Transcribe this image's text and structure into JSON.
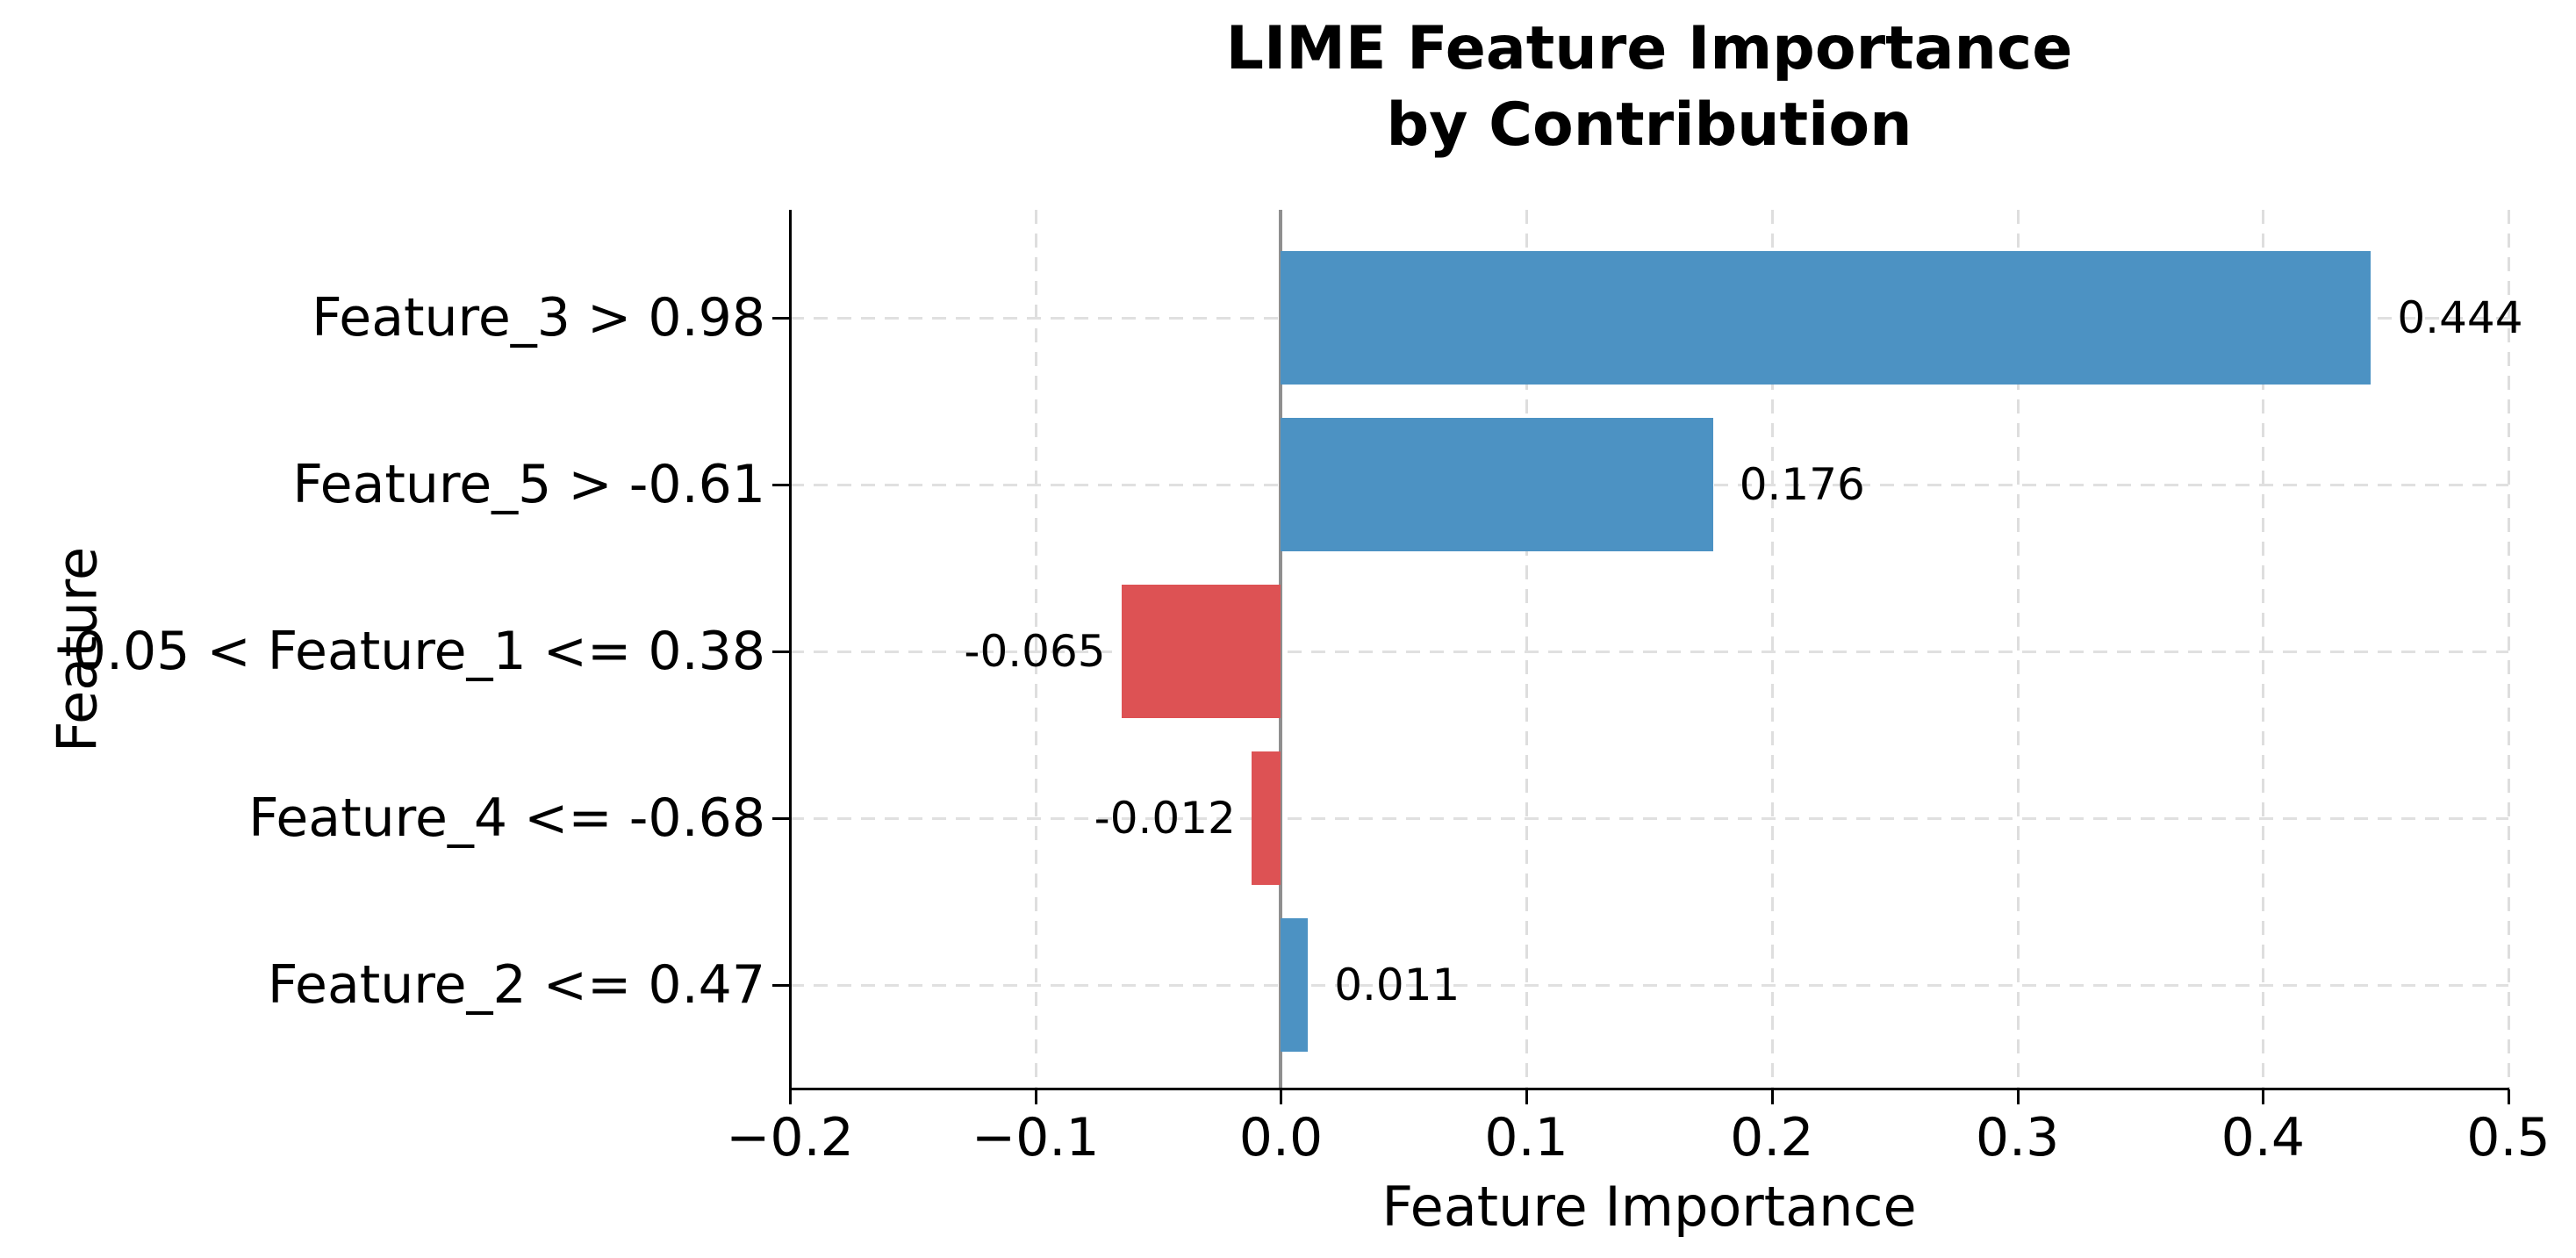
{
  "title": "LIME Feature Importance\nby Contribution",
  "chart_data": {
    "type": "bar",
    "orientation": "horizontal",
    "title": "LIME Feature Importance by Contribution",
    "categories": [
      "Feature_3 > 0.98",
      "Feature_5 > -0.61",
      "0.05 < Feature_1 <= 0.38",
      "Feature_4 <= -0.68",
      "Feature_2 <= 0.47"
    ],
    "values": [
      0.444,
      0.176,
      -0.065,
      -0.012,
      0.011
    ],
    "value_labels": [
      "0.444",
      "0.176",
      "-0.065",
      "-0.012",
      "0.011"
    ],
    "xlabel": "Feature Importance",
    "ylabel": "Feature",
    "xlim": [
      -0.2,
      0.5
    ],
    "xticks": [
      -0.2,
      -0.1,
      0.0,
      0.1,
      0.2,
      0.3,
      0.4,
      0.5
    ],
    "xtick_labels": [
      "−0.2",
      "−0.1",
      "0.0",
      "0.1",
      "0.2",
      "0.3",
      "0.4",
      "0.5"
    ],
    "grid": true,
    "gridline_style": "dashed",
    "legend": "none",
    "colors": {
      "positive_bar": "#4c92c3",
      "negative_bar": "#dd5254",
      "zero_line": "#8f8f8f",
      "gridline": "#dedede",
      "axis": "#000000",
      "background": "#ffffff"
    }
  }
}
